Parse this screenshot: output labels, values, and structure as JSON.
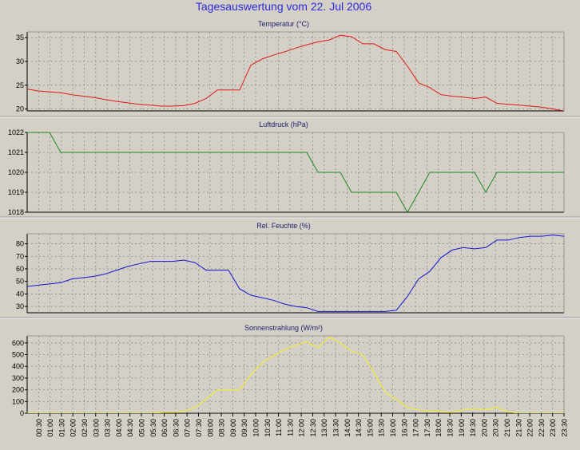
{
  "title": "Tagesauswertung vom 22. Jul 2006",
  "chart_data": [
    {
      "type": "line",
      "title": "Temperatur (°C)",
      "color": "#e01818",
      "ylim": [
        19.6,
        36.2
      ],
      "yticks": [
        20,
        25,
        30,
        35
      ],
      "series": [
        {
          "values": [
            24.2,
            23.8,
            23.6,
            23.4,
            23.0,
            22.7,
            22.4,
            22.0,
            21.6,
            21.3,
            21.0,
            20.8,
            20.6,
            20.6,
            20.7,
            21.2,
            22.2,
            24.0,
            24.0,
            24.0,
            29.2,
            30.5,
            31.3,
            32.0,
            32.8,
            33.5,
            34.1,
            34.5,
            35.5,
            35.2,
            33.7,
            33.7,
            32.5,
            32.1,
            29.0,
            25.5,
            24.5,
            23.0,
            22.7,
            22.5,
            22.2,
            22.5,
            21.2,
            21.0,
            20.8,
            20.6,
            20.4,
            20.0,
            19.6
          ]
        }
      ]
    },
    {
      "type": "line",
      "title": "Luftdruck (hPa)",
      "color": "#1e8a1e",
      "ylim": [
        1018,
        1022
      ],
      "yticks": [
        1018,
        1019,
        1020,
        1021,
        1022
      ],
      "series": [
        {
          "values": [
            1022,
            1022,
            1022,
            1021,
            1021,
            1021,
            1021,
            1021,
            1021,
            1021,
            1021,
            1021,
            1021,
            1021,
            1021,
            1021,
            1021,
            1021,
            1021,
            1021,
            1021,
            1021,
            1021,
            1021,
            1021,
            1021,
            1020,
            1020,
            1020,
            1019,
            1019,
            1019,
            1019,
            1019,
            1018,
            1019,
            1020,
            1020,
            1020,
            1020,
            1020,
            1019,
            1020,
            1020,
            1020,
            1020,
            1020,
            1020,
            1020
          ]
        }
      ]
    },
    {
      "type": "line",
      "title": "Rel. Feuchte (%)",
      "color": "#1414d0",
      "ylim": [
        25,
        88
      ],
      "yticks": [
        30,
        40,
        50,
        60,
        70,
        80
      ],
      "series": [
        {
          "values": [
            46,
            47,
            48,
            49,
            52,
            53,
            54,
            56,
            59,
            62,
            64,
            66,
            66,
            66,
            67,
            65,
            59,
            59,
            59,
            44,
            39,
            37,
            35,
            32,
            30,
            29,
            26,
            26,
            26,
            26,
            26,
            26,
            26,
            27,
            38,
            52,
            58,
            69,
            75,
            77,
            76,
            77,
            83,
            83,
            85,
            86,
            86,
            87,
            86
          ]
        }
      ]
    },
    {
      "type": "line",
      "title": "Sonnenstrahlung (W/m²)",
      "color": "#f2f21e",
      "ylim": [
        0,
        660
      ],
      "yticks": [
        0,
        100,
        200,
        300,
        400,
        500,
        600
      ],
      "series": [
        {
          "values": [
            0,
            0,
            0,
            0,
            0,
            0,
            0,
            0,
            0,
            0,
            0,
            0,
            5,
            10,
            15,
            50,
            120,
            200,
            200,
            200,
            330,
            430,
            490,
            540,
            580,
            610,
            560,
            650,
            600,
            530,
            500,
            350,
            180,
            120,
            50,
            30,
            20,
            15,
            10,
            30,
            40,
            30,
            50,
            10,
            0,
            0,
            0,
            0,
            0
          ]
        }
      ]
    }
  ],
  "x_labels": [
    "00:30",
    "01:00",
    "01:30",
    "02:00",
    "02:30",
    "03:00",
    "03:30",
    "04:00",
    "04:30",
    "05:00",
    "05:30",
    "06:00",
    "06:30",
    "07:00",
    "07:30",
    "08:00",
    "08:30",
    "09:00",
    "09:30",
    "10:00",
    "10:30",
    "11:00",
    "11:30",
    "12:00",
    "12:30",
    "13:00",
    "13:30",
    "14:00",
    "14:30",
    "15:00",
    "15:30",
    "16:00",
    "16:30",
    "17:00",
    "17:30",
    "18:00",
    "18:30",
    "19:00",
    "19:30",
    "20:00",
    "20:30",
    "21:00",
    "21:30",
    "22:00",
    "22:30",
    "23:00",
    "23:30"
  ]
}
